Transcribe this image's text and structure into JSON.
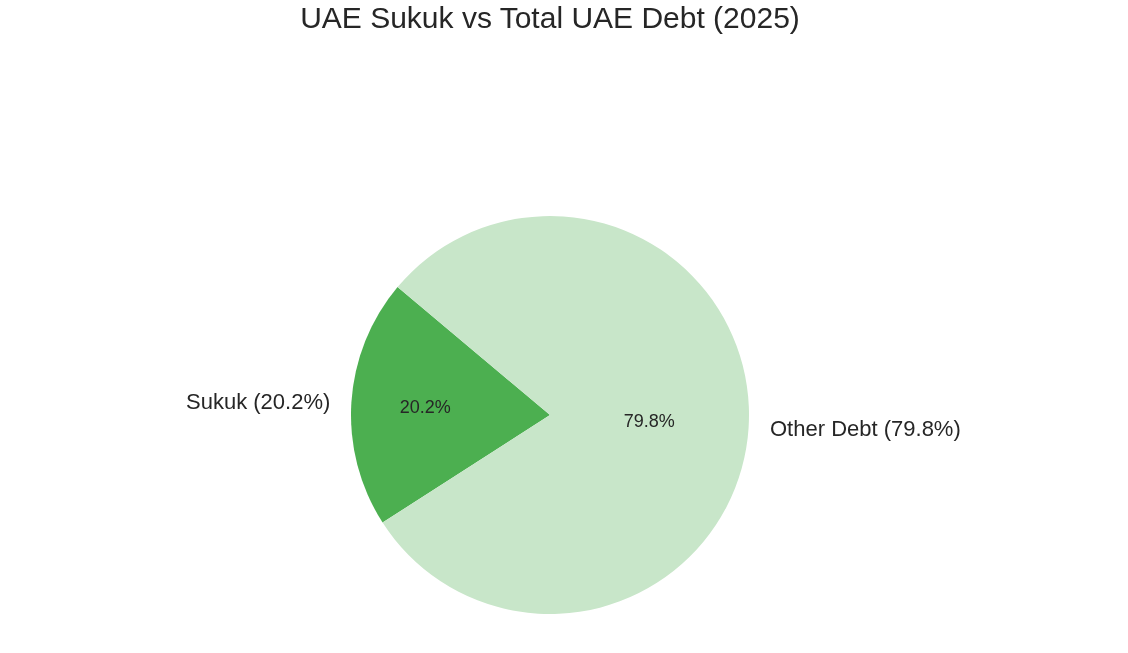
{
  "chart_data": {
    "type": "pie",
    "title": "UAE Sukuk vs Total UAE Debt (2025)",
    "categories": [
      "Sukuk (20.2%)",
      "Other Debt (79.8%)"
    ],
    "values": [
      20.2,
      79.8
    ],
    "colors": [
      "#4caf50",
      "#c8e6c9"
    ],
    "value_labels": [
      "20.2%",
      "79.8%"
    ]
  }
}
